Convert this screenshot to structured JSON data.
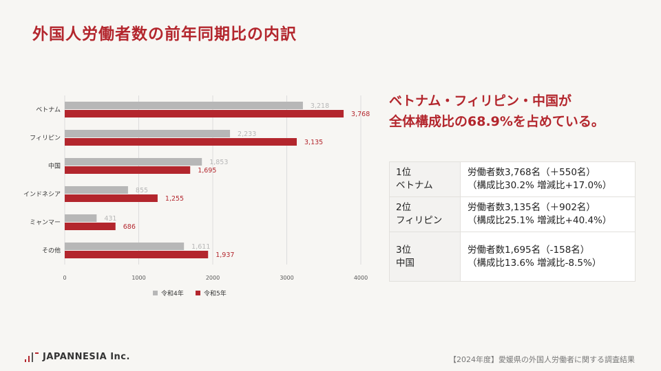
{
  "title": "外国人労働者数の前年同期比の内訳",
  "headline": {
    "line1": "ベトナム・フィリピン・中国が",
    "line2": "全体構成比の68.9%を占めている。"
  },
  "ranking": [
    {
      "rank": "1位",
      "country": "ベトナム",
      "workers": "労働者数3,768名（＋550名）",
      "ratio": "（構成比30.2% 増減比+17.0%）"
    },
    {
      "rank": "2位",
      "country": "フィリピン",
      "workers": "労働者数3,135名（＋902名）",
      "ratio": "（構成比25.1% 増減比+40.4%）"
    },
    {
      "rank": "3位",
      "country": "中国",
      "workers": "労働者数1,695名（-158名）",
      "ratio": "（構成比13.6% 増減比-8.5%）"
    }
  ],
  "footer": {
    "brand": "JAPANNESIA Inc.",
    "note": "【2024年度】愛媛県の外国人労働者に関する調査結果"
  },
  "colors": {
    "accent": "#b3262d",
    "series_prev": "#b7b7b7",
    "series_curr": "#b3262d"
  },
  "chart_data": {
    "type": "bar",
    "orientation": "horizontal",
    "categories": [
      "ベトナム",
      "フィリピン",
      "中国",
      "インドネシア",
      "ミャンマー",
      "その他"
    ],
    "series": [
      {
        "name": "令和4年",
        "values": [
          3218,
          2233,
          1853,
          855,
          431,
          1611
        ],
        "labels": [
          "3,218",
          "2,233",
          "1,853",
          "855",
          "431",
          "1,611"
        ]
      },
      {
        "name": "令和5年",
        "values": [
          3768,
          3135,
          1695,
          1255,
          686,
          1937
        ],
        "labels": [
          "3,768",
          "3,135",
          "1,695",
          "1,255",
          "686",
          "1,937"
        ]
      }
    ],
    "xlim": [
      0,
      4000
    ],
    "xticks": [
      0,
      1000,
      2000,
      3000,
      4000
    ],
    "grid": true,
    "legend": "bottom"
  }
}
